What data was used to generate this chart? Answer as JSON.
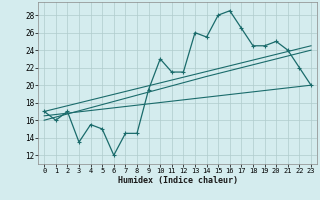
{
  "xlabel": "Humidex (Indice chaleur)",
  "background_color": "#d4ecee",
  "grid_color": "#b0cccc",
  "line_color": "#1a6b6b",
  "xlim": [
    -0.5,
    23.5
  ],
  "ylim": [
    11,
    29.5
  ],
  "yticks": [
    12,
    14,
    16,
    18,
    20,
    22,
    24,
    26,
    28
  ],
  "xticks": [
    0,
    1,
    2,
    3,
    4,
    5,
    6,
    7,
    8,
    9,
    10,
    11,
    12,
    13,
    14,
    15,
    16,
    17,
    18,
    19,
    20,
    21,
    22,
    23
  ],
  "main_line_x": [
    0,
    1,
    2,
    3,
    4,
    5,
    6,
    7,
    8,
    9,
    10,
    11,
    12,
    13,
    14,
    15,
    16,
    17,
    18,
    19,
    20,
    21,
    22,
    23
  ],
  "main_line_y": [
    17,
    16,
    17,
    13.5,
    15.5,
    15,
    12,
    14.5,
    14.5,
    19.5,
    23,
    21.5,
    21.5,
    26,
    25.5,
    28,
    28.5,
    26.5,
    24.5,
    24.5,
    25,
    24,
    22,
    20
  ],
  "line2_x": [
    0,
    23
  ],
  "line2_y": [
    16.5,
    20
  ],
  "line3_x": [
    0,
    23
  ],
  "line3_y": [
    17.0,
    24.5
  ],
  "line4_x": [
    0,
    14,
    23
  ],
  "line4_y": [
    16.0,
    21.0,
    24.0
  ]
}
